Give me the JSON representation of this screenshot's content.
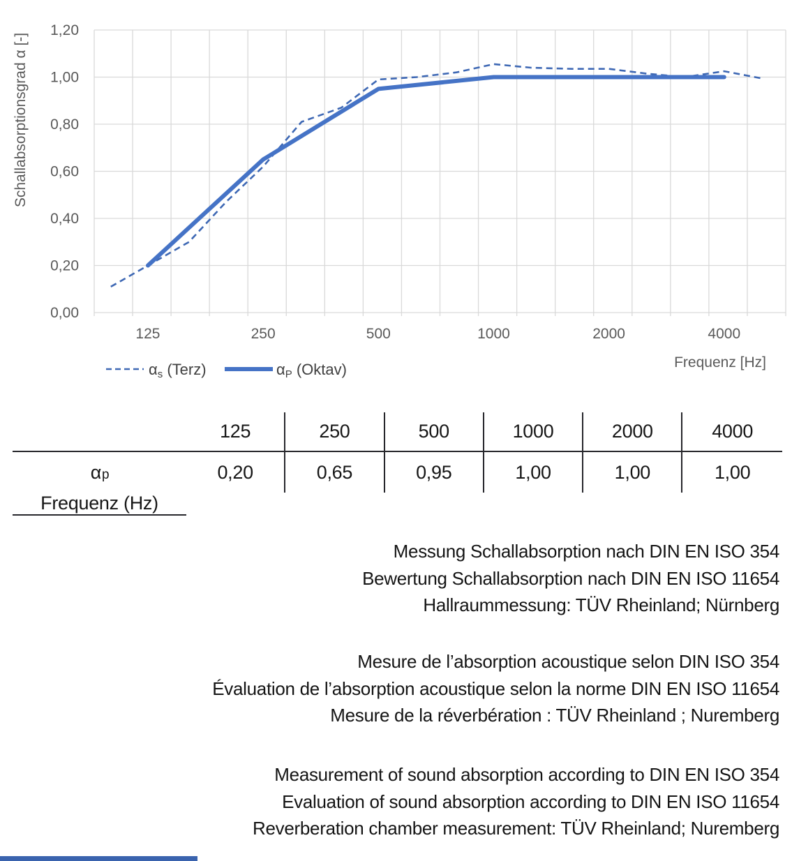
{
  "chart": {
    "y_axis_title": "Schallabsorptionsgrad α [-]",
    "x_axis_title": "Frequenz [Hz]",
    "y_tick_labels": [
      "0,00",
      "0,20",
      "0,40",
      "0,60",
      "0,80",
      "1,00",
      "1,20"
    ],
    "y_tick_values": [
      0,
      0.2,
      0.4,
      0.6,
      0.8,
      1.0,
      1.2
    ],
    "x_tick_labels": [
      "125",
      "250",
      "500",
      "1000",
      "2000",
      "4000"
    ],
    "x_tick_values": [
      125,
      250,
      500,
      1000,
      2000,
      4000
    ],
    "colors": {
      "grid": "#D9D9D9",
      "axis_text": "#595959",
      "legend_text": "#404040",
      "series_dashed": "#3E68B4",
      "series_solid": "#4573C6"
    },
    "legend": [
      {
        "symbol": "α",
        "subscript": "s",
        "suffix": " (Terz)",
        "style": "dashed"
      },
      {
        "symbol": "α",
        "subscript": "P",
        "suffix": " (Oktav)",
        "style": "solid"
      }
    ]
  },
  "chart_data": {
    "type": "line",
    "x_scale": "log",
    "title": "",
    "xlabel": "Frequenz [Hz]",
    "ylabel": "Schallabsorptionsgrad α [-]",
    "ylim": [
      0,
      1.2
    ],
    "xlim_hz": [
      90.5,
      5792
    ],
    "grid": true,
    "gridlines_per_octave": 3,
    "legend_position": "bottom-left",
    "series": [
      {
        "name": "αs (Terz)",
        "band": "third-octave",
        "style": "dashed",
        "x": [
          100,
          125,
          160,
          200,
          250,
          315,
          400,
          500,
          630,
          800,
          1000,
          1250,
          1600,
          2000,
          2500,
          3150,
          4000,
          5000
        ],
        "values": [
          0.11,
          0.2,
          0.3,
          0.47,
          0.62,
          0.81,
          0.87,
          0.99,
          1.0,
          1.02,
          1.055,
          1.04,
          1.035,
          1.035,
          1.015,
          1.0,
          1.025,
          0.995
        ]
      },
      {
        "name": "αP (Oktav)",
        "band": "octave",
        "style": "solid",
        "x": [
          125,
          250,
          500,
          1000,
          2000,
          4000
        ],
        "values": [
          0.2,
          0.65,
          0.95,
          1.0,
          1.0,
          1.0
        ]
      }
    ]
  },
  "table": {
    "header_label": "Frequenz (Hz)",
    "frequencies": [
      "125",
      "250",
      "500",
      "1000",
      "2000",
      "4000"
    ],
    "row_symbol": "α",
    "row_subscript": "p",
    "values": [
      "0,20",
      "0,65",
      "0,95",
      "1,00",
      "1,00",
      "1,00"
    ]
  },
  "notes": {
    "german": [
      "Messung Schallabsorption nach DIN EN ISO 354",
      "Bewertung Schallabsorption nach DIN EN ISO 11654",
      "Hallraummessung: TÜV Rheinland; Nürnberg"
    ],
    "french": [
      "Mesure de l’absorption acoustique selon DIN ISO 354",
      "Évaluation de l’absorption acoustique selon la norme DIN EN ISO 11654",
      "Mesure de la réverbération : TÜV Rheinland ; Nuremberg"
    ],
    "english": [
      "Measurement of sound absorption according to DIN EN ISO 354",
      "Evaluation of sound absorption according to DIN EN ISO 11654",
      "Reverberation chamber measurement: TÜV Rheinland; Nuremberg"
    ]
  },
  "footer": {
    "accent_color": "#3A63AE"
  }
}
